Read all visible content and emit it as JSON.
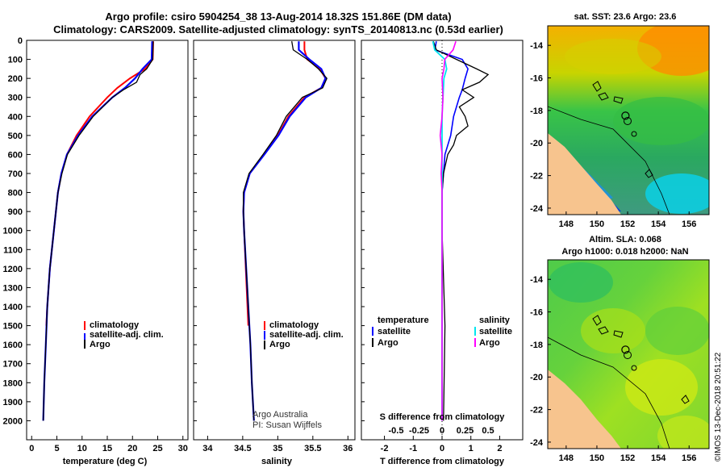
{
  "header": {
    "line1": "Argo profile: csiro 5904254_38 13-Aug-2014 18.32S 151.86E (DM data)",
    "line2": "Climatology: CARS2009. Satellite-adjusted climatology: synTS_20140813.nc (0.53d earlier)"
  },
  "colors": {
    "climatology": "#ff0000",
    "satellite": "#0000ff",
    "argo": "#000000",
    "satellite_s": "#00e5ee",
    "argo_s": "#ff00ff"
  },
  "chart_data": [
    {
      "type": "line",
      "id": "temperature",
      "xlabel": "temperature (deg C)",
      "xlim": [
        -1,
        31
      ],
      "xticks": [
        0,
        5,
        10,
        15,
        20,
        25,
        30
      ],
      "ylim": [
        0,
        2100
      ],
      "yticks": [
        0,
        100,
        200,
        300,
        400,
        500,
        600,
        700,
        800,
        900,
        1000,
        1100,
        1200,
        1300,
        1400,
        1500,
        1600,
        1700,
        1800,
        1900,
        2000
      ],
      "legend": [
        "climatology",
        "satellite-adj. clim.",
        "Argo"
      ],
      "series": [
        {
          "name": "climatology",
          "depth": [
            5,
            100,
            150,
            200,
            250,
            300,
            400,
            500,
            600,
            700,
            800,
            1000,
            1200,
            1400,
            1500
          ],
          "values": [
            24.1,
            24.0,
            22.5,
            19.5,
            17.0,
            15.0,
            11.5,
            8.9,
            7.0,
            5.9,
            5.2,
            4.4,
            3.6,
            3.1,
            2.9
          ]
        },
        {
          "name": "satellite-adj. clim.",
          "depth": [
            5,
            100,
            150,
            200,
            250,
            300,
            400,
            500,
            600,
            700,
            800,
            1000,
            1200,
            1400,
            1600,
            1800,
            2000
          ],
          "values": [
            23.9,
            23.8,
            22.0,
            20.5,
            18.5,
            16.0,
            12.0,
            9.2,
            7.0,
            5.9,
            5.2,
            4.4,
            3.6,
            3.1,
            2.8,
            2.5,
            2.3
          ]
        },
        {
          "name": "Argo",
          "depth": [
            5,
            100,
            150,
            180,
            220,
            260,
            300,
            400,
            500,
            600,
            700,
            800,
            1000,
            1200,
            1400,
            1600,
            1800,
            2000
          ],
          "values": [
            24.1,
            24.0,
            22.8,
            21.5,
            20.8,
            18.2,
            16.0,
            12.2,
            9.4,
            7.1,
            6.0,
            5.2,
            4.4,
            3.6,
            3.1,
            2.8,
            2.5,
            2.3
          ]
        }
      ]
    },
    {
      "type": "line",
      "id": "salinity",
      "xlabel": "salinity",
      "xlim": [
        33.8,
        36.1
      ],
      "xticks": [
        34,
        34.5,
        35,
        35.5,
        36
      ],
      "ylim": [
        0,
        2100
      ],
      "legend": [
        "climatology",
        "satellite-adj. clim.",
        "Argo"
      ],
      "note": [
        "Argo Australia",
        "PI: Susan Wijffels"
      ],
      "series": [
        {
          "name": "climatology",
          "depth": [
            5,
            50,
            100,
            150,
            200,
            250,
            300,
            400,
            500,
            600,
            700,
            800,
            900,
            1000,
            1500
          ],
          "values": [
            35.38,
            35.38,
            35.42,
            35.6,
            35.68,
            35.62,
            35.38,
            35.15,
            35.0,
            34.8,
            34.6,
            34.52,
            34.51,
            34.52,
            34.58
          ]
        },
        {
          "name": "satellite-adj. clim.",
          "depth": [
            5,
            50,
            100,
            150,
            200,
            250,
            300,
            400,
            500,
            600,
            700,
            800,
            900,
            1000,
            1200,
            1400,
            1600,
            1800,
            2000
          ],
          "values": [
            35.3,
            35.3,
            35.45,
            35.62,
            35.68,
            35.62,
            35.4,
            35.17,
            35.01,
            34.81,
            34.6,
            34.52,
            34.51,
            34.52,
            34.55,
            34.58,
            34.61,
            34.63,
            34.66
          ]
        },
        {
          "name": "Argo",
          "depth": [
            5,
            50,
            100,
            150,
            200,
            250,
            300,
            400,
            500,
            600,
            700,
            800,
            900,
            1000,
            1200,
            1400,
            1600,
            1800,
            2000
          ],
          "values": [
            35.2,
            35.22,
            35.42,
            35.58,
            35.7,
            35.64,
            35.35,
            35.12,
            34.98,
            34.79,
            34.59,
            34.51,
            34.51,
            34.52,
            34.55,
            34.58,
            34.61,
            34.63,
            34.66
          ]
        }
      ]
    },
    {
      "type": "line",
      "id": "difference",
      "xlabel": "T difference from climatology",
      "xlabel_top": "S difference from climatology",
      "xlim": [
        -2.8,
        2.8
      ],
      "xticks": [
        -2,
        -1,
        0,
        1,
        2
      ],
      "xticks_top": [
        -0.5,
        -0.25,
        0,
        0.25,
        0.5
      ],
      "xtick_labels_top": [
        "-0.5",
        "-0.25",
        "0",
        "0.25",
        "0.5"
      ],
      "ylim": [
        0,
        2100
      ],
      "legend_left": {
        "title": "temperature",
        "items": [
          "satellite",
          "Argo"
        ]
      },
      "legend_right": {
        "title": "salinity",
        "items": [
          "satellite",
          "Argo"
        ]
      },
      "series": [
        {
          "name": "T satellite",
          "depth": [
            5,
            50,
            100,
            150,
            200,
            260,
            300,
            400,
            500,
            600,
            700,
            800,
            1000,
            1500,
            2000
          ],
          "values": [
            -0.2,
            -0.25,
            0.7,
            0.9,
            0.8,
            0.7,
            0.6,
            0.4,
            0.3,
            0.1,
            0.05,
            0.0,
            0.0,
            0.0,
            0.0
          ]
        },
        {
          "name": "T Argo",
          "depth": [
            5,
            50,
            100,
            150,
            180,
            220,
            260,
            300,
            350,
            400,
            450,
            500,
            550,
            600,
            700,
            800,
            1000,
            1500,
            2000
          ],
          "values": [
            -0.3,
            -0.2,
            0.5,
            1.2,
            1.6,
            1.3,
            0.7,
            1.1,
            0.6,
            0.8,
            0.9,
            0.5,
            0.4,
            0.2,
            0.05,
            0.0,
            0.0,
            0.1,
            0.05
          ]
        },
        {
          "name": "S satellite",
          "depth": [
            5,
            50,
            100,
            150,
            200,
            300,
            400,
            500,
            600,
            700,
            800,
            1000,
            1500,
            2000
          ],
          "values": [
            -0.1,
            -0.08,
            0.03,
            0.05,
            0.02,
            0.01,
            0.0,
            0.0,
            0.0,
            0.0,
            0.0,
            0.0,
            0.0,
            0.0
          ]
        },
        {
          "name": "S Argo",
          "depth": [
            5,
            50,
            100,
            150,
            200,
            300,
            400,
            500,
            600,
            700,
            800,
            1000,
            1500,
            2000
          ],
          "values": [
            0.15,
            0.12,
            0.03,
            0.02,
            0.0,
            0.01,
            0.0,
            -0.02,
            0.0,
            -0.01,
            0.0,
            0.0,
            0.0,
            0.0
          ]
        }
      ]
    },
    {
      "type": "heatmap",
      "id": "sst_map",
      "title": "sat. SST: 23.6 Argo: 23.6",
      "xticks": [
        148,
        150,
        152,
        154,
        156
      ],
      "yticks": [
        -14,
        -16,
        -18,
        -20,
        -22,
        -24
      ],
      "xlim": [
        146.8,
        157.3
      ],
      "ylim": [
        -24.4,
        -12.8
      ],
      "argo_position": {
        "lon": 151.86,
        "lat": -18.32
      }
    },
    {
      "type": "heatmap",
      "id": "sla_map",
      "title": "Altim. SLA: 0.068",
      "subtitle": "Argo h1000: 0.018 h2000: NaN",
      "xticks": [
        148,
        150,
        152,
        154,
        156
      ],
      "yticks": [
        -14,
        -16,
        -18,
        -20,
        -22,
        -24
      ],
      "xlim": [
        146.8,
        157.3
      ],
      "ylim": [
        -24.4,
        -12.8
      ],
      "argo_position": {
        "lon": 151.86,
        "lat": -18.32
      }
    }
  ],
  "stamp": "©IMOS 13-Dec-2018 20:51:22"
}
